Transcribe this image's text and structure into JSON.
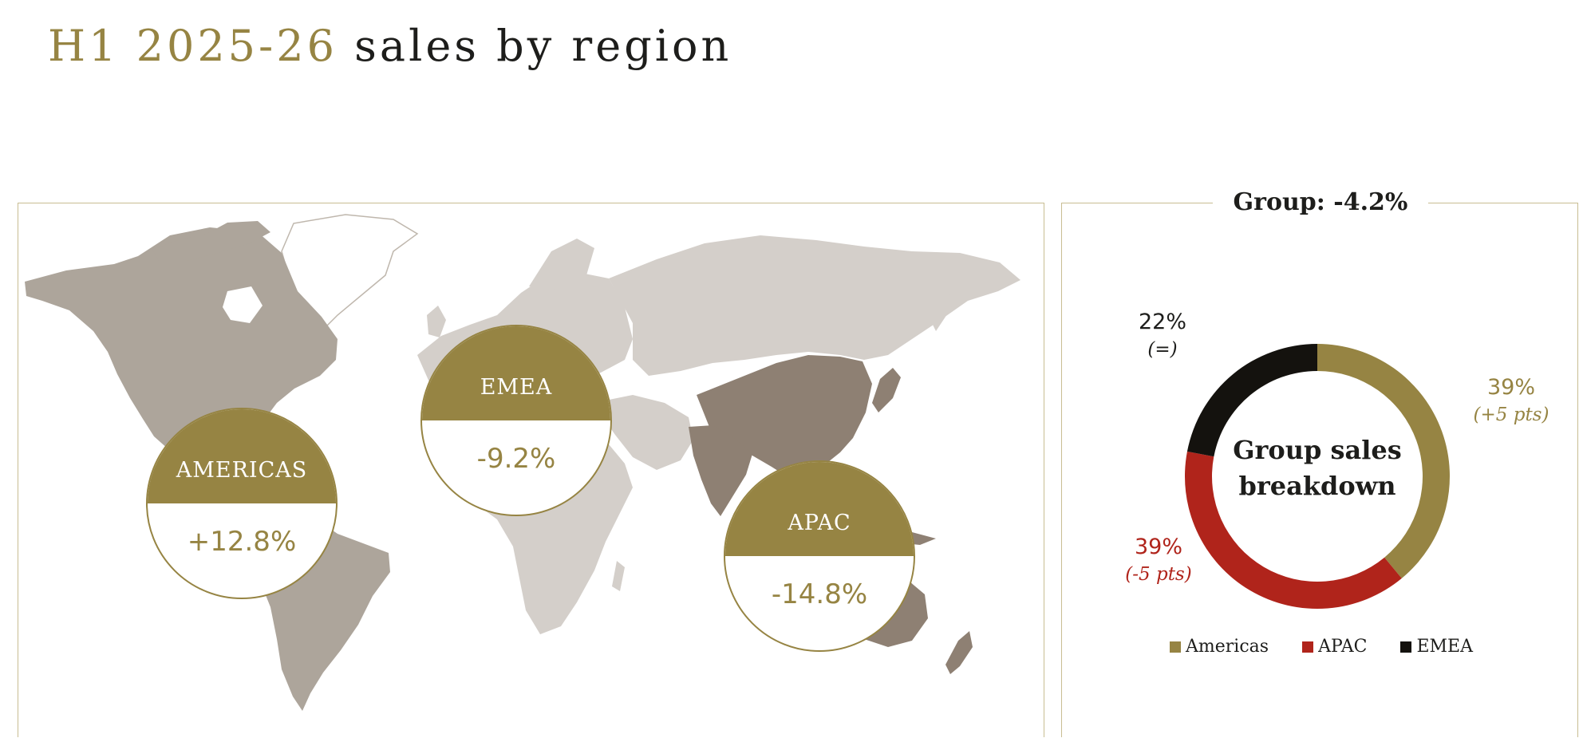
{
  "header": {
    "title_accent": "H1 2025-26",
    "title_rest": "sales by region"
  },
  "map": {
    "regions": [
      {
        "key": "americas",
        "label": "AMERICAS",
        "change": "+12.8%"
      },
      {
        "key": "emea",
        "label": "EMEA",
        "change": "-9.2%"
      },
      {
        "key": "apac",
        "label": "APAC",
        "change": "-14.8%"
      }
    ],
    "colors": {
      "americas_land": "#ada59b",
      "emea_land": "#d4cfca",
      "apac_land": "#8e8073",
      "other_land": "#ffffff",
      "badge": "#968443"
    }
  },
  "group": {
    "title": "Group: -4.2%",
    "center_label_line1": "Group sales",
    "center_label_line2": "breakdown"
  },
  "chart_data": {
    "type": "pie",
    "title": "Group sales breakdown",
    "slices": [
      {
        "name": "Americas",
        "value": 39,
        "label": "39%",
        "delta": "(+5 pts)",
        "color": "#968443"
      },
      {
        "name": "APAC",
        "value": 39,
        "label": "39%",
        "delta": "(-5 pts)",
        "color": "#b0241b"
      },
      {
        "name": "EMEA",
        "value": 22,
        "label": "22%",
        "delta": "(=)",
        "color": "#14120e"
      }
    ],
    "legend_placement": "bottom"
  }
}
